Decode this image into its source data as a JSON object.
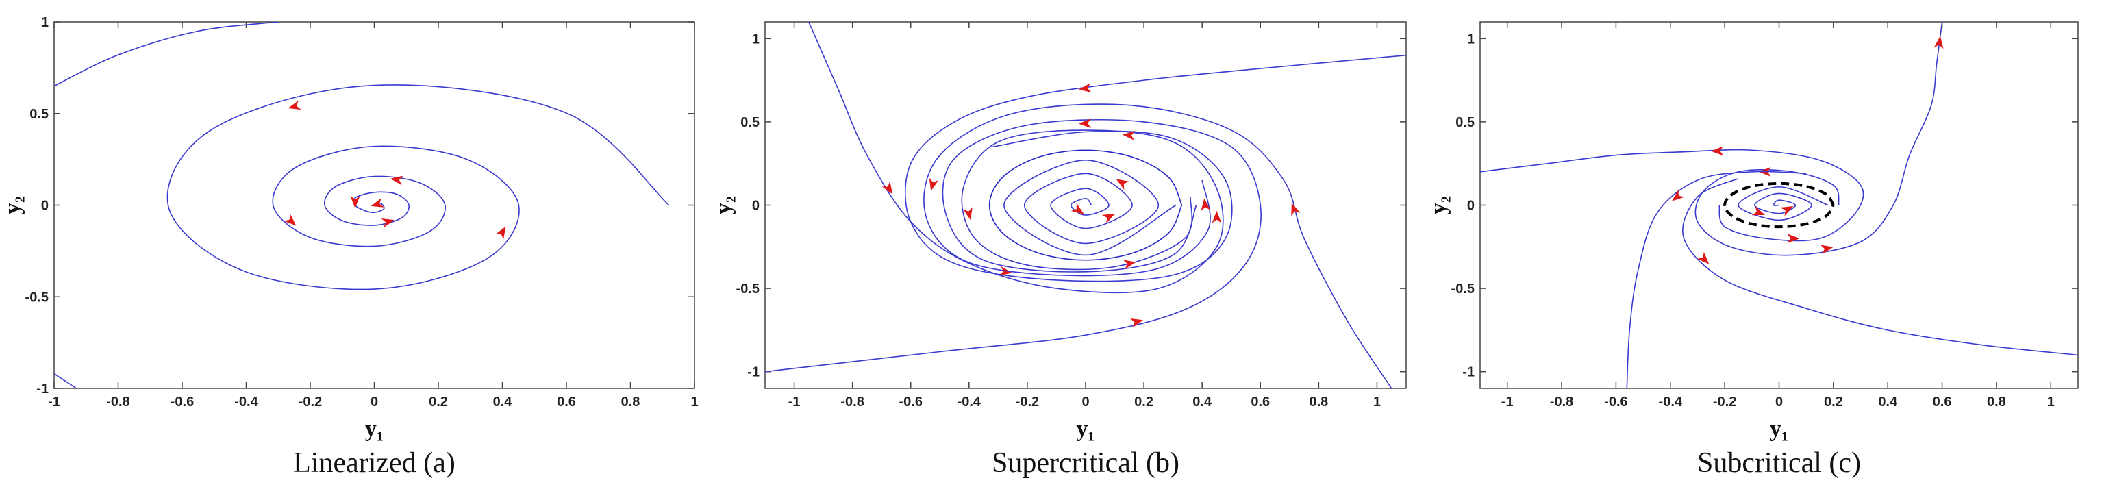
{
  "chart_data": [
    {
      "type": "phase-portrait",
      "caption": "Linearized (a)",
      "x_label": "y₁",
      "y_label": "y₂",
      "xlim": [
        -1,
        1
      ],
      "ylim": [
        -1,
        1
      ],
      "xticks": [
        -1,
        -0.8,
        -0.6,
        -0.4,
        -0.2,
        0,
        0.2,
        0.4,
        0.6,
        0.8,
        1
      ],
      "yticks": [
        -1,
        -0.5,
        0,
        0.5,
        1
      ],
      "arrow_color": "#e01818",
      "series": [
        {
          "color": "#3a3ad0",
          "arrows": true,
          "x": [
            0.92,
            0.595,
            0,
            -0.498,
            -0.644,
            -0.416,
            0,
            0.348,
            0.451,
            0.292,
            0,
            -0.244,
            -0.316,
            -0.204,
            0,
            0.171,
            0.221,
            0.143,
            0,
            -0.12,
            -0.155,
            -0.1,
            0,
            0.084,
            0.108,
            0.07,
            0,
            -0.06,
            -0.06,
            -0.03,
            0,
            0.03,
            0.02,
            0
          ],
          "y": [
            0,
            0.506,
            0.654,
            0.423,
            0,
            -0.354,
            -0.458,
            -0.296,
            0,
            0.248,
            0.321,
            0.207,
            0,
            -0.174,
            -0.224,
            -0.145,
            0,
            0.121,
            0.157,
            0.102,
            0,
            -0.085,
            -0.11,
            -0.071,
            0,
            0.06,
            0.07,
            0.04,
            0,
            -0.03,
            -0.04,
            -0.02,
            0.01,
            0
          ]
        },
        {
          "color": "#3a3ad0",
          "arrows": false,
          "x": [
            -1,
            -0.8,
            -0.55,
            -0.3
          ],
          "y": [
            0.65,
            0.82,
            0.95,
            1.0
          ]
        },
        {
          "color": "#3a3ad0",
          "arrows": false,
          "x": [
            -1,
            -0.93
          ],
          "y": [
            -0.92,
            -1
          ]
        }
      ]
    },
    {
      "type": "phase-portrait",
      "caption": "Supercritical (b)",
      "x_label": "y₁",
      "y_label": "y₂",
      "xlim": [
        -1.1,
        1.1
      ],
      "ylim": [
        -1.1,
        1.1
      ],
      "xticks": [
        -1,
        -0.8,
        -0.6,
        -0.4,
        -0.2,
        0,
        0.2,
        0.4,
        0.6,
        0.8,
        1
      ],
      "yticks": [
        -1,
        -0.5,
        0,
        0.5,
        1
      ],
      "arrow_color": "#e01818",
      "series": [
        {
          "color": "#3a3ad0",
          "arrows": true,
          "x": [
            -0.95,
            -0.85,
            -0.75,
            -0.6,
            -0.4,
            -0.1,
            0.25,
            0.45,
            0.45,
            0.3,
            0,
            -0.3,
            -0.42,
            -0.38,
            -0.2,
            0.1,
            0.34,
            0.36
          ],
          "y": [
            1.1,
            0.7,
            0.3,
            -0.1,
            -0.35,
            -0.5,
            -0.5,
            -0.25,
            0.1,
            0.38,
            0.45,
            0.38,
            0.1,
            -0.2,
            -0.36,
            -0.37,
            -0.2,
            0.05
          ]
        },
        {
          "color": "#3a3ad0",
          "arrows": true,
          "x": [
            1.1,
            0.6,
            0.2,
            -0.2,
            -0.45,
            -0.6,
            -0.6,
            -0.45,
            -0.1,
            0.3,
            0.48,
            0.48,
            0.3,
            0,
            -0.32
          ],
          "y": [
            0.9,
            0.82,
            0.75,
            0.65,
            0.5,
            0.25,
            -0.1,
            -0.35,
            -0.45,
            -0.42,
            -0.2,
            0.15,
            0.4,
            0.44,
            0.35
          ]
        },
        {
          "color": "#3a3ad0",
          "arrows": true,
          "x": [
            -1.1,
            -0.5,
            0,
            0.35,
            0.55,
            0.6,
            0.5,
            0.2,
            -0.2,
            -0.45,
            -0.48,
            -0.35,
            0,
            0.3,
            0.38
          ],
          "y": [
            -1.0,
            -0.88,
            -0.78,
            -0.62,
            -0.35,
            0,
            0.35,
            0.5,
            0.48,
            0.28,
            -0.05,
            -0.33,
            -0.4,
            -0.3,
            0
          ]
        },
        {
          "color": "#3a3ad0",
          "arrows": true,
          "x": [
            1.05,
            0.9,
            0.75,
            0.68,
            0.5,
            0.15,
            -0.25,
            -0.5,
            -0.55,
            -0.42,
            -0.1,
            0.25,
            0.42,
            0.4
          ],
          "y": [
            -1.1,
            -0.7,
            -0.2,
            0.15,
            0.45,
            0.6,
            0.55,
            0.3,
            -0.05,
            -0.33,
            -0.42,
            -0.38,
            -0.15,
            0.15
          ]
        },
        {
          "color": "#2828c8",
          "arrows": false,
          "x": [
            0.33,
            0.286,
            0.165,
            0,
            -0.165,
            -0.286,
            -0.33,
            -0.286,
            -0.165,
            0,
            0.165,
            0.286,
            0.33
          ],
          "y": [
            0,
            0.165,
            0.286,
            0.33,
            0.286,
            0.165,
            0,
            -0.165,
            -0.286,
            -0.33,
            -0.286,
            -0.165,
            0
          ]
        },
        {
          "color": "#3a3ad0",
          "arrows": true,
          "x": [
            0.02,
            0,
            -0.05,
            0,
            0.08,
            0,
            -0.12,
            0,
            0.16,
            0,
            -0.21,
            0,
            0.25,
            0,
            -0.28,
            0,
            0.31
          ],
          "y": [
            0,
            0.04,
            0,
            -0.06,
            0,
            0.1,
            0,
            -0.14,
            0,
            0.19,
            0,
            -0.23,
            0,
            0.27,
            0,
            -0.3,
            0
          ]
        }
      ]
    },
    {
      "type": "phase-portrait",
      "caption": "Subcritical (c)",
      "x_label": "y₁",
      "y_label": "y₂",
      "xlim": [
        -1.1,
        1.1
      ],
      "ylim": [
        -1.1,
        1.1
      ],
      "xticks": [
        -1,
        -0.8,
        -0.6,
        -0.4,
        -0.2,
        0,
        0.2,
        0.4,
        0.6,
        0.8,
        1
      ],
      "yticks": [
        -1,
        -0.5,
        0,
        0.5,
        1
      ],
      "arrow_color": "#e01818",
      "series": [
        {
          "color": "#3a3ad0",
          "arrows": true,
          "x": [
            0.22,
            0.2,
            0.05,
            -0.15,
            -0.28,
            -0.3,
            -0.18,
            0.05,
            0.3,
            0.42,
            0.48,
            0.56,
            0.58,
            0.6
          ],
          "y": [
            0,
            0.12,
            0.2,
            0.2,
            0.08,
            -0.1,
            -0.25,
            -0.3,
            -0.22,
            0,
            0.3,
            0.6,
            0.85,
            1.1
          ]
        },
        {
          "color": "#3a3ad0",
          "arrows": true,
          "x": [
            -0.22,
            -0.2,
            -0.05,
            0.15,
            0.28,
            0.3,
            0.15,
            -0.1,
            -0.35,
            -0.6,
            -0.85,
            -1.1
          ],
          "y": [
            0,
            -0.13,
            -0.2,
            -0.2,
            -0.05,
            0.12,
            0.27,
            0.33,
            0.32,
            0.3,
            0.25,
            0.2
          ]
        },
        {
          "color": "#3a3ad0",
          "arrows": true,
          "x": [
            0.1,
            -0.1,
            -0.3,
            -0.45,
            -0.52,
            -0.55,
            -0.56
          ],
          "y": [
            0.19,
            0.2,
            0.15,
            -0.05,
            -0.4,
            -0.75,
            -1.1
          ]
        },
        {
          "color": "#3a3ad0",
          "arrows": true,
          "x": [
            -0.15,
            -0.3,
            -0.35,
            -0.2,
            0.1,
            0.4,
            0.75,
            1.1
          ],
          "y": [
            0.16,
            0.05,
            -0.2,
            -0.45,
            -0.62,
            -0.75,
            -0.84,
            -0.9
          ]
        },
        {
          "color": "#3a3ad0",
          "arrows": true,
          "x": [
            0.18,
            0,
            -0.15,
            0,
            0.12,
            0,
            -0.09,
            0,
            0.06,
            0,
            -0.02,
            0
          ],
          "y": [
            0,
            0.11,
            0,
            -0.09,
            0,
            0.07,
            0,
            -0.05,
            0,
            0.03,
            0,
            0
          ]
        },
        {
          "color": "#000000",
          "linestyle": "dashed",
          "arrows": false,
          "x": [
            0.2,
            0.173,
            0.1,
            0,
            -0.1,
            -0.173,
            -0.2,
            -0.173,
            -0.1,
            0,
            0.1,
            0.173,
            0.2
          ],
          "y": [
            0,
            0.065,
            0.113,
            0.13,
            0.113,
            0.065,
            0,
            -0.065,
            -0.113,
            -0.13,
            -0.113,
            -0.065,
            0
          ]
        }
      ]
    }
  ]
}
